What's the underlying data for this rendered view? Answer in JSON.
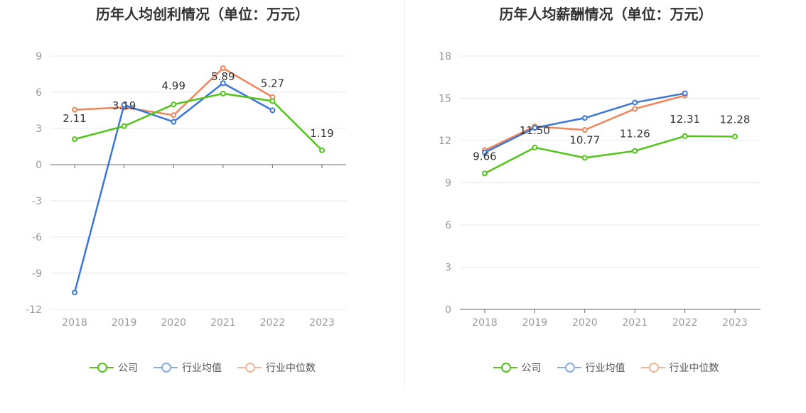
{
  "colors": {
    "company": "#52c41a",
    "industry_avg": "#3a75d8",
    "industry_median": "#f0855a",
    "legend_avg": "#8aabe8",
    "legend_median": "#f6b39a",
    "grid": "#e6e8ef",
    "axis": "#666666",
    "tick": "#999999"
  },
  "legend": {
    "company": "公司",
    "industry_avg": "行业均值",
    "industry_median": "行业中位数"
  },
  "chart_data": [
    {
      "type": "line",
      "title": "历年人均创利情况（单位：万元）",
      "categories": [
        "2018",
        "2019",
        "2020",
        "2021",
        "2022",
        "2023"
      ],
      "ylim": [
        -12,
        9
      ],
      "yticks": [
        9,
        6,
        3,
        0,
        -3,
        -6,
        -9,
        -12
      ],
      "ytick_labels": [
        "9",
        "6",
        "3",
        "0",
        "-3",
        "-6",
        "-9",
        "-12"
      ],
      "series": [
        {
          "name": "公司",
          "key": "company",
          "values": [
            2.11,
            3.19,
            4.99,
            5.89,
            5.27,
            1.19
          ],
          "labels": [
            "2.11",
            "3.19",
            "4.99",
            "5.89",
            "5.27",
            "1.19"
          ]
        },
        {
          "name": "行业均值",
          "key": "industry_avg",
          "values": [
            -10.6,
            4.95,
            3.55,
            6.75,
            4.5,
            null
          ]
        },
        {
          "name": "行业中位数",
          "key": "industry_median",
          "values": [
            4.55,
            4.75,
            4.1,
            8.0,
            5.6,
            null
          ]
        }
      ]
    },
    {
      "type": "line",
      "title": "历年人均薪酬情况（单位：万元）",
      "categories": [
        "2018",
        "2019",
        "2020",
        "2021",
        "2022",
        "2023"
      ],
      "ylim": [
        0,
        18
      ],
      "yticks": [
        18,
        15,
        12,
        9,
        6,
        3,
        0
      ],
      "ytick_labels": [
        "18",
        "15",
        "12",
        "9",
        "6",
        "3",
        "0"
      ],
      "series": [
        {
          "name": "公司",
          "key": "company",
          "values": [
            9.66,
            11.5,
            10.77,
            11.26,
            12.31,
            12.28
          ],
          "labels": [
            "9.66",
            "11.50",
            "10.77",
            "11.26",
            "12.31",
            "12.28"
          ]
        },
        {
          "name": "行业均值",
          "key": "industry_avg",
          "values": [
            11.15,
            12.9,
            13.6,
            14.7,
            15.35,
            null
          ]
        },
        {
          "name": "行业中位数",
          "key": "industry_median",
          "values": [
            11.3,
            13.0,
            12.75,
            14.25,
            15.2,
            null
          ]
        }
      ]
    }
  ]
}
